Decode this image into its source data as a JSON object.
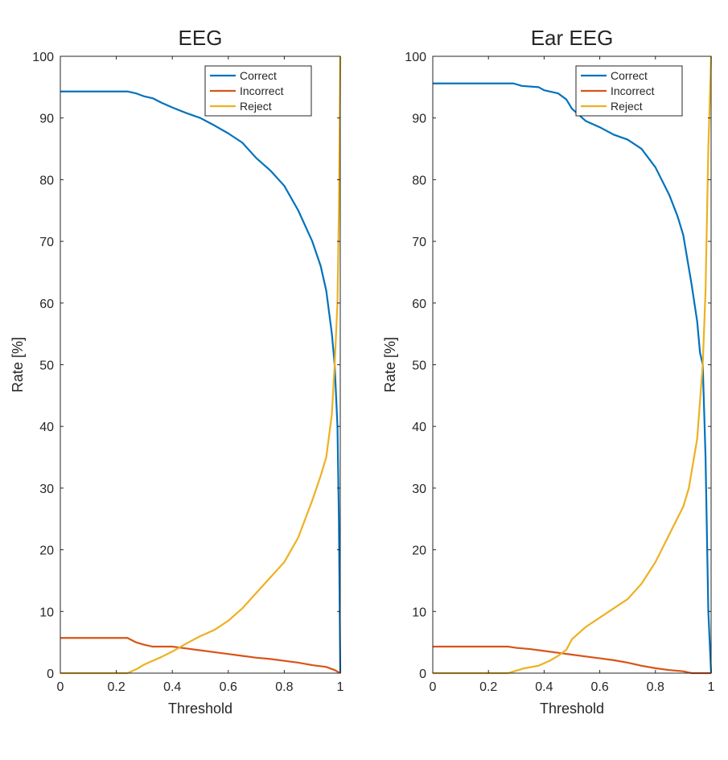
{
  "chart_data": [
    {
      "type": "line",
      "title": "EEG",
      "xlabel": "Threshold",
      "ylabel": "Rate [%]",
      "xlim": [
        0,
        1
      ],
      "ylim": [
        0,
        100
      ],
      "xticks": [
        0,
        0.2,
        0.4,
        0.6,
        0.8,
        1
      ],
      "xtick_labels": [
        "0",
        "0.2",
        "0.4",
        "0.6",
        "0.8",
        "1"
      ],
      "yticks": [
        0,
        10,
        20,
        30,
        40,
        50,
        60,
        70,
        80,
        90,
        100
      ],
      "ytick_labels": [
        "0",
        "10",
        "20",
        "30",
        "40",
        "50",
        "60",
        "70",
        "80",
        "90",
        "100"
      ],
      "grid": false,
      "legend_position": "top-right",
      "series": [
        {
          "name": "Correct",
          "color": "#0072BD",
          "points": [
            [
              0,
              94.3
            ],
            [
              0.24,
              94.3
            ],
            [
              0.27,
              94
            ],
            [
              0.3,
              93.5
            ],
            [
              0.33,
              93.2
            ],
            [
              0.36,
              92.5
            ],
            [
              0.4,
              91.7
            ],
            [
              0.45,
              90.8
            ],
            [
              0.5,
              90
            ],
            [
              0.55,
              88.8
            ],
            [
              0.6,
              87.5
            ],
            [
              0.65,
              86
            ],
            [
              0.7,
              83.5
            ],
            [
              0.75,
              81.5
            ],
            [
              0.8,
              79
            ],
            [
              0.85,
              75
            ],
            [
              0.9,
              70
            ],
            [
              0.93,
              66
            ],
            [
              0.95,
              62
            ],
            [
              0.97,
              55
            ],
            [
              0.98,
              50
            ],
            [
              0.99,
              40
            ],
            [
              0.995,
              25
            ],
            [
              1,
              0
            ]
          ]
        },
        {
          "name": "Incorrect",
          "color": "#D95319",
          "points": [
            [
              0,
              5.7
            ],
            [
              0.24,
              5.7
            ],
            [
              0.27,
              5
            ],
            [
              0.3,
              4.6
            ],
            [
              0.33,
              4.3
            ],
            [
              0.4,
              4.3
            ],
            [
              0.45,
              4
            ],
            [
              0.5,
              3.7
            ],
            [
              0.55,
              3.4
            ],
            [
              0.6,
              3.1
            ],
            [
              0.65,
              2.8
            ],
            [
              0.7,
              2.5
            ],
            [
              0.75,
              2.3
            ],
            [
              0.8,
              2
            ],
            [
              0.85,
              1.7
            ],
            [
              0.9,
              1.3
            ],
            [
              0.95,
              1
            ],
            [
              0.98,
              0.5
            ],
            [
              1,
              0
            ]
          ]
        },
        {
          "name": "Reject",
          "color": "#EDB120",
          "points": [
            [
              0,
              0
            ],
            [
              0.24,
              0
            ],
            [
              0.27,
              0.6
            ],
            [
              0.3,
              1.4
            ],
            [
              0.33,
              2
            ],
            [
              0.36,
              2.6
            ],
            [
              0.4,
              3.5
            ],
            [
              0.45,
              4.8
            ],
            [
              0.5,
              6
            ],
            [
              0.55,
              7
            ],
            [
              0.6,
              8.5
            ],
            [
              0.65,
              10.5
            ],
            [
              0.7,
              13
            ],
            [
              0.75,
              15.5
            ],
            [
              0.8,
              18
            ],
            [
              0.85,
              22
            ],
            [
              0.9,
              28
            ],
            [
              0.93,
              32
            ],
            [
              0.95,
              35
            ],
            [
              0.97,
              42
            ],
            [
              0.98,
              50
            ],
            [
              0.99,
              60
            ],
            [
              0.995,
              75
            ],
            [
              1,
              100
            ]
          ]
        }
      ]
    },
    {
      "type": "line",
      "title": "Ear EEG",
      "xlabel": "Threshold",
      "ylabel": "Rate [%]",
      "xlim": [
        0,
        1
      ],
      "ylim": [
        0,
        100
      ],
      "xticks": [
        0,
        0.2,
        0.4,
        0.6,
        0.8,
        1
      ],
      "xtick_labels": [
        "0",
        "0.2",
        "0.4",
        "0.6",
        "0.8",
        "1"
      ],
      "yticks": [
        0,
        10,
        20,
        30,
        40,
        50,
        60,
        70,
        80,
        90,
        100
      ],
      "ytick_labels": [
        "0",
        "10",
        "20",
        "30",
        "40",
        "50",
        "60",
        "70",
        "80",
        "90",
        "100"
      ],
      "grid": false,
      "legend_position": "top-right",
      "series": [
        {
          "name": "Correct",
          "color": "#0072BD",
          "points": [
            [
              0,
              95.6
            ],
            [
              0.29,
              95.6
            ],
            [
              0.32,
              95.2
            ],
            [
              0.38,
              95
            ],
            [
              0.4,
              94.5
            ],
            [
              0.45,
              94
            ],
            [
              0.48,
              93
            ],
            [
              0.5,
              91.5
            ],
            [
              0.55,
              89.5
            ],
            [
              0.6,
              88.5
            ],
            [
              0.65,
              87.3
            ],
            [
              0.7,
              86.5
            ],
            [
              0.75,
              85
            ],
            [
              0.8,
              82
            ],
            [
              0.85,
              77.5
            ],
            [
              0.88,
              74
            ],
            [
              0.9,
              71
            ],
            [
              0.93,
              63
            ],
            [
              0.95,
              57
            ],
            [
              0.96,
              52
            ],
            [
              0.97,
              50
            ],
            [
              0.98,
              35
            ],
            [
              0.99,
              10
            ],
            [
              1,
              0
            ]
          ]
        },
        {
          "name": "Incorrect",
          "color": "#D95319",
          "points": [
            [
              0,
              4.3
            ],
            [
              0.27,
              4.3
            ],
            [
              0.3,
              4.1
            ],
            [
              0.35,
              3.9
            ],
            [
              0.4,
              3.6
            ],
            [
              0.45,
              3.3
            ],
            [
              0.5,
              3
            ],
            [
              0.55,
              2.7
            ],
            [
              0.6,
              2.4
            ],
            [
              0.65,
              2.1
            ],
            [
              0.7,
              1.7
            ],
            [
              0.75,
              1.2
            ],
            [
              0.8,
              0.8
            ],
            [
              0.85,
              0.5
            ],
            [
              0.9,
              0.3
            ],
            [
              0.93,
              0
            ],
            [
              1,
              0
            ]
          ]
        },
        {
          "name": "Reject",
          "color": "#EDB120",
          "points": [
            [
              0,
              0
            ],
            [
              0.27,
              0
            ],
            [
              0.3,
              0.4
            ],
            [
              0.33,
              0.8
            ],
            [
              0.38,
              1.2
            ],
            [
              0.42,
              2
            ],
            [
              0.45,
              2.8
            ],
            [
              0.48,
              3.8
            ],
            [
              0.5,
              5.5
            ],
            [
              0.55,
              7.5
            ],
            [
              0.6,
              9
            ],
            [
              0.65,
              10.5
            ],
            [
              0.7,
              12
            ],
            [
              0.75,
              14.5
            ],
            [
              0.8,
              18
            ],
            [
              0.85,
              22.5
            ],
            [
              0.9,
              27
            ],
            [
              0.92,
              30
            ],
            [
              0.95,
              38
            ],
            [
              0.97,
              50
            ],
            [
              0.98,
              62
            ],
            [
              0.99,
              85
            ],
            [
              1,
              100
            ]
          ]
        }
      ]
    }
  ]
}
